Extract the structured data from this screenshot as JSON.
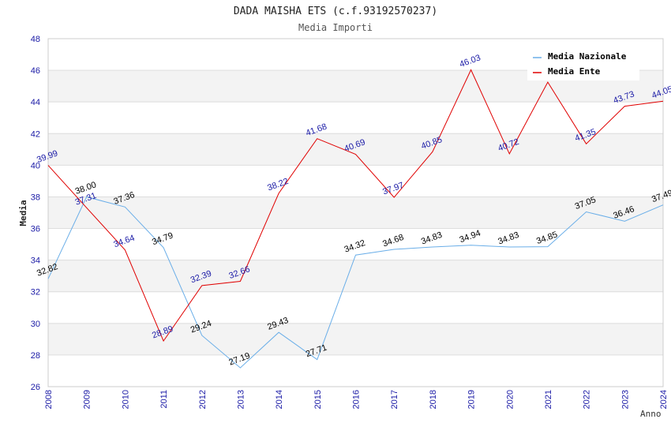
{
  "chart_data": {
    "type": "line",
    "title": "DADA MAISHA ETS (c.f.93192570237)",
    "subtitle": "Media Importi",
    "xlabel": "Anno",
    "ylabel": "Media",
    "ylim": [
      26,
      48
    ],
    "yticks": [
      26,
      28,
      30,
      32,
      34,
      36,
      38,
      40,
      42,
      44,
      46,
      48
    ],
    "grid": true,
    "legend_position": "top-right",
    "x": [
      "2008",
      "2009",
      "2010",
      "2011",
      "2012",
      "2013",
      "2014",
      "2015",
      "2016",
      "2017",
      "2018",
      "2019",
      "2020",
      "2021",
      "2022",
      "2023",
      "2024"
    ],
    "series": [
      {
        "name": "Media Nazionale",
        "color": "#6aaee8",
        "label_color": "#000000",
        "values": [
          32.82,
          38.0,
          37.36,
          34.79,
          29.24,
          27.19,
          29.43,
          27.71,
          34.32,
          34.68,
          34.83,
          34.94,
          34.83,
          34.85,
          37.05,
          36.46,
          37.49
        ],
        "labels": [
          "32.82",
          "38.00",
          "37.36",
          "34.79",
          "29.24",
          "27.19",
          "29.43",
          "27.71",
          "34.32",
          "34.68",
          "34.83",
          "34.94",
          "34.83",
          "34.85",
          "37.05",
          "36.46",
          "37.49"
        ]
      },
      {
        "name": "Media Ente",
        "color": "#e00000",
        "label_color": "#1a1aa6",
        "values": [
          39.99,
          37.31,
          34.64,
          28.89,
          32.39,
          32.66,
          38.22,
          41.68,
          40.69,
          37.97,
          40.85,
          46.03,
          40.72,
          45.25,
          41.35,
          43.73,
          44.05
        ],
        "labels": [
          "39.99",
          "37.31",
          "34.64",
          "28.89",
          "32.39",
          "32.66",
          "38.22",
          "41.68",
          "40.69",
          "37.97",
          "40.85",
          "46.03",
          "40.72",
          "",
          "41.35",
          "43.73",
          "44.05"
        ]
      }
    ]
  }
}
